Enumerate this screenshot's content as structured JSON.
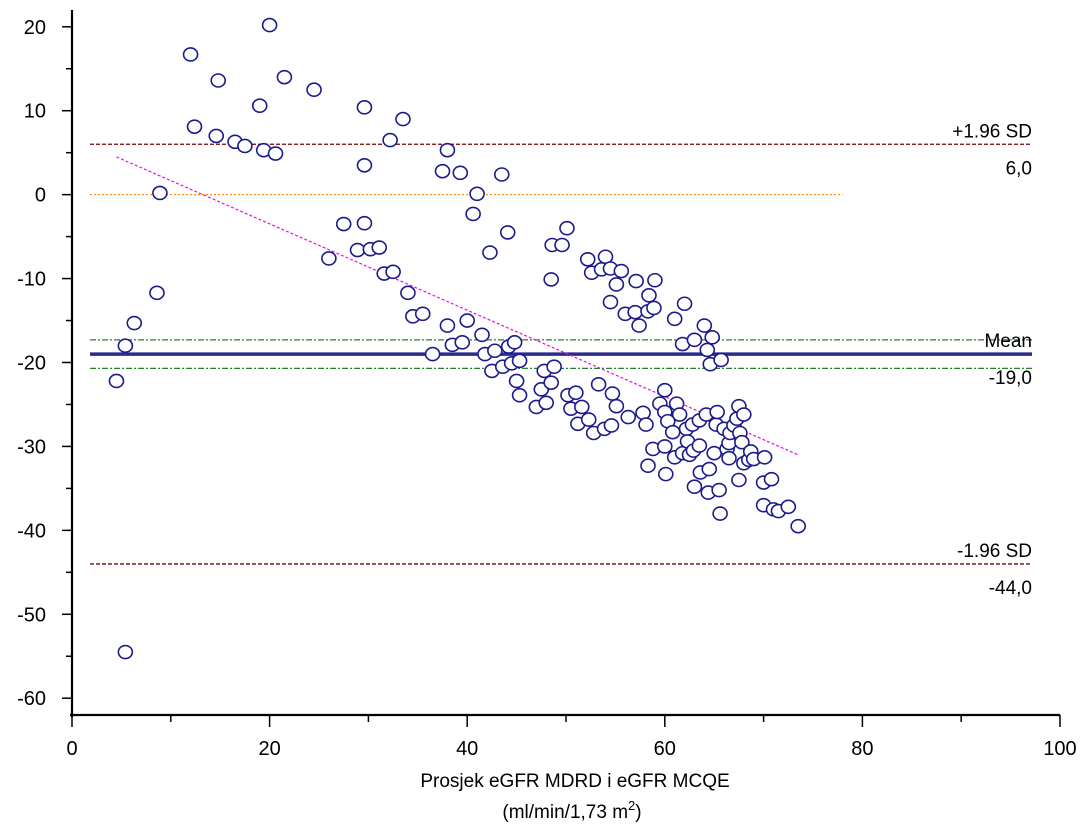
{
  "chart_data": {
    "type": "scatter",
    "title": "",
    "xlabel": "Prosjek eGFR MDRD i eGFR MCQE",
    "xlabel_units": {
      "prefix": "(ml/min/1,73 m",
      "sup": "2",
      "suffix": ")"
    },
    "ylabel": "",
    "xlim": [
      0,
      100
    ],
    "ylim": [
      -62,
      22
    ],
    "x_ticks": [
      "0",
      "20",
      "40",
      "60",
      "80",
      "100"
    ],
    "y_ticks": [
      "20",
      "10",
      "0",
      "-10",
      "-20",
      "-30",
      "-40",
      "-50",
      "-60"
    ],
    "x_tick_values": [
      0,
      20,
      40,
      60,
      80,
      100
    ],
    "y_tick_values": [
      20,
      10,
      0,
      -10,
      -20,
      -30,
      -40,
      -50,
      -60
    ],
    "grid": false,
    "colors": {
      "points": "#1a1a8c",
      "mean": "#2b2b8c",
      "sd_lines": "#7a0000",
      "ci_lines": "#2e7d32",
      "zero_line": "#ff8c1a",
      "regression": "#ff00ff"
    },
    "reference_lines": {
      "upper_sd": {
        "y": 6.0,
        "label": "+1.96 SD",
        "value_label": "6,0"
      },
      "mean": {
        "y": -19.0,
        "label": "Mean",
        "value_label": "-19,0"
      },
      "lower_sd": {
        "y": -44.0,
        "label": "-1.96 SD",
        "value_label": "-44,0"
      },
      "mean_ci": [
        -17.3,
        -20.7
      ],
      "zero": 0
    },
    "regression_line": {
      "x": [
        4.5,
        73.5
      ],
      "y": [
        4.5,
        -31.0
      ]
    },
    "points": [
      [
        4.5,
        -22.2
      ],
      [
        5.4,
        -18.0
      ],
      [
        5.4,
        -54.5
      ],
      [
        6.3,
        -15.3
      ],
      [
        8.6,
        -11.7
      ],
      [
        8.9,
        0.2
      ],
      [
        12.0,
        16.7
      ],
      [
        12.4,
        8.1
      ],
      [
        14.6,
        7.0
      ],
      [
        14.8,
        13.6
      ],
      [
        16.5,
        6.3
      ],
      [
        17.5,
        5.8
      ],
      [
        19.0,
        10.6
      ],
      [
        19.4,
        5.3
      ],
      [
        20.0,
        20.2
      ],
      [
        20.6,
        4.9
      ],
      [
        21.5,
        14.0
      ],
      [
        24.5,
        12.5
      ],
      [
        26.0,
        -7.6
      ],
      [
        27.5,
        -3.5
      ],
      [
        28.9,
        -6.6
      ],
      [
        29.6,
        10.4
      ],
      [
        29.6,
        3.5
      ],
      [
        29.6,
        -3.4
      ],
      [
        30.2,
        -6.5
      ],
      [
        31.1,
        -6.3
      ],
      [
        31.6,
        -9.4
      ],
      [
        32.2,
        6.5
      ],
      [
        32.5,
        -9.2
      ],
      [
        33.5,
        9.0
      ],
      [
        34.0,
        -11.7
      ],
      [
        34.5,
        -14.5
      ],
      [
        35.5,
        -14.2
      ],
      [
        36.5,
        -19.0
      ],
      [
        37.5,
        2.8
      ],
      [
        38.0,
        5.3
      ],
      [
        38.0,
        -15.6
      ],
      [
        38.5,
        -17.9
      ],
      [
        39.3,
        2.6
      ],
      [
        39.5,
        -17.6
      ],
      [
        40.0,
        -15.0
      ],
      [
        40.6,
        -2.3
      ],
      [
        41.0,
        0.1
      ],
      [
        41.5,
        -16.7
      ],
      [
        41.8,
        -19.0
      ],
      [
        42.3,
        -6.9
      ],
      [
        42.5,
        -21.0
      ],
      [
        42.8,
        -18.6
      ],
      [
        43.5,
        2.4
      ],
      [
        43.6,
        -20.5
      ],
      [
        44.1,
        -4.5
      ],
      [
        44.2,
        -18.1
      ],
      [
        44.5,
        -20.1
      ],
      [
        44.8,
        -17.6
      ],
      [
        45.0,
        -22.2
      ],
      [
        45.3,
        -19.8
      ],
      [
        45.3,
        -23.9
      ],
      [
        47.0,
        -25.3
      ],
      [
        47.5,
        -23.2
      ],
      [
        47.8,
        -21.0
      ],
      [
        48.0,
        -24.8
      ],
      [
        48.5,
        -22.4
      ],
      [
        48.5,
        -10.1
      ],
      [
        48.6,
        -6.0
      ],
      [
        48.8,
        -20.5
      ],
      [
        49.6,
        -6.0
      ],
      [
        50.1,
        -4.0
      ],
      [
        50.2,
        -23.9
      ],
      [
        50.5,
        -25.5
      ],
      [
        51.0,
        -23.6
      ],
      [
        51.2,
        -27.3
      ],
      [
        51.6,
        -25.3
      ],
      [
        52.2,
        -7.7
      ],
      [
        52.3,
        -26.8
      ],
      [
        52.6,
        -9.3
      ],
      [
        52.8,
        -28.4
      ],
      [
        53.3,
        -22.6
      ],
      [
        53.6,
        -8.9
      ],
      [
        53.9,
        -27.9
      ],
      [
        54.0,
        -7.4
      ],
      [
        54.5,
        -12.8
      ],
      [
        54.5,
        -8.8
      ],
      [
        54.6,
        -27.5
      ],
      [
        54.7,
        -23.7
      ],
      [
        55.1,
        -10.7
      ],
      [
        55.1,
        -25.2
      ],
      [
        55.6,
        -9.1
      ],
      [
        56.0,
        -14.2
      ],
      [
        56.3,
        -26.5
      ],
      [
        57.0,
        -14.0
      ],
      [
        57.1,
        -10.3
      ],
      [
        57.4,
        -15.6
      ],
      [
        57.8,
        -26.0
      ],
      [
        58.1,
        -27.4
      ],
      [
        58.3,
        -32.3
      ],
      [
        58.3,
        -13.9
      ],
      [
        58.4,
        -12.0
      ],
      [
        58.8,
        -30.3
      ],
      [
        58.9,
        -13.5
      ],
      [
        59.0,
        -10.2
      ],
      [
        59.5,
        -24.9
      ],
      [
        60.0,
        -30.0
      ],
      [
        60.0,
        -25.9
      ],
      [
        60.0,
        -23.3
      ],
      [
        60.1,
        -33.3
      ],
      [
        60.3,
        -27.0
      ],
      [
        60.8,
        -28.3
      ],
      [
        61.0,
        -31.3
      ],
      [
        61.0,
        -14.8
      ],
      [
        61.2,
        -24.9
      ],
      [
        61.5,
        -26.2
      ],
      [
        61.8,
        -30.8
      ],
      [
        61.8,
        -17.8
      ],
      [
        62.0,
        -13.0
      ],
      [
        62.2,
        -27.9
      ],
      [
        62.3,
        -29.4
      ],
      [
        62.5,
        -31.0
      ],
      [
        62.8,
        -27.4
      ],
      [
        62.9,
        -30.5
      ],
      [
        63.0,
        -34.8
      ],
      [
        63.0,
        -17.3
      ],
      [
        63.5,
        -26.9
      ],
      [
        63.5,
        -29.9
      ],
      [
        63.6,
        -33.1
      ],
      [
        64.0,
        -15.6
      ],
      [
        64.2,
        -26.2
      ],
      [
        64.3,
        -18.5
      ],
      [
        64.4,
        -35.5
      ],
      [
        64.5,
        -32.7
      ],
      [
        64.6,
        -20.2
      ],
      [
        64.8,
        -17.0
      ],
      [
        65.0,
        -30.8
      ],
      [
        65.2,
        -27.4
      ],
      [
        65.3,
        -25.9
      ],
      [
        65.5,
        -35.2
      ],
      [
        65.6,
        -38.0
      ],
      [
        65.7,
        -19.7
      ],
      [
        66.0,
        -27.9
      ],
      [
        66.3,
        -30.3
      ],
      [
        66.5,
        -31.4
      ],
      [
        66.5,
        -29.6
      ],
      [
        66.6,
        -28.4
      ],
      [
        67.0,
        -27.5
      ],
      [
        67.3,
        -26.7
      ],
      [
        67.5,
        -34.0
      ],
      [
        67.5,
        -25.2
      ],
      [
        67.6,
        -28.4
      ],
      [
        67.8,
        -29.5
      ],
      [
        68.0,
        -32.0
      ],
      [
        68.0,
        -26.2
      ],
      [
        68.5,
        -31.6
      ],
      [
        68.7,
        -30.6
      ],
      [
        69.0,
        -31.5
      ],
      [
        70.0,
        -37.0
      ],
      [
        70.0,
        -34.3
      ],
      [
        70.1,
        -31.3
      ],
      [
        70.8,
        -33.9
      ],
      [
        71.0,
        -37.5
      ],
      [
        71.5,
        -37.7
      ],
      [
        72.5,
        -37.2
      ],
      [
        73.5,
        -39.5
      ]
    ]
  }
}
